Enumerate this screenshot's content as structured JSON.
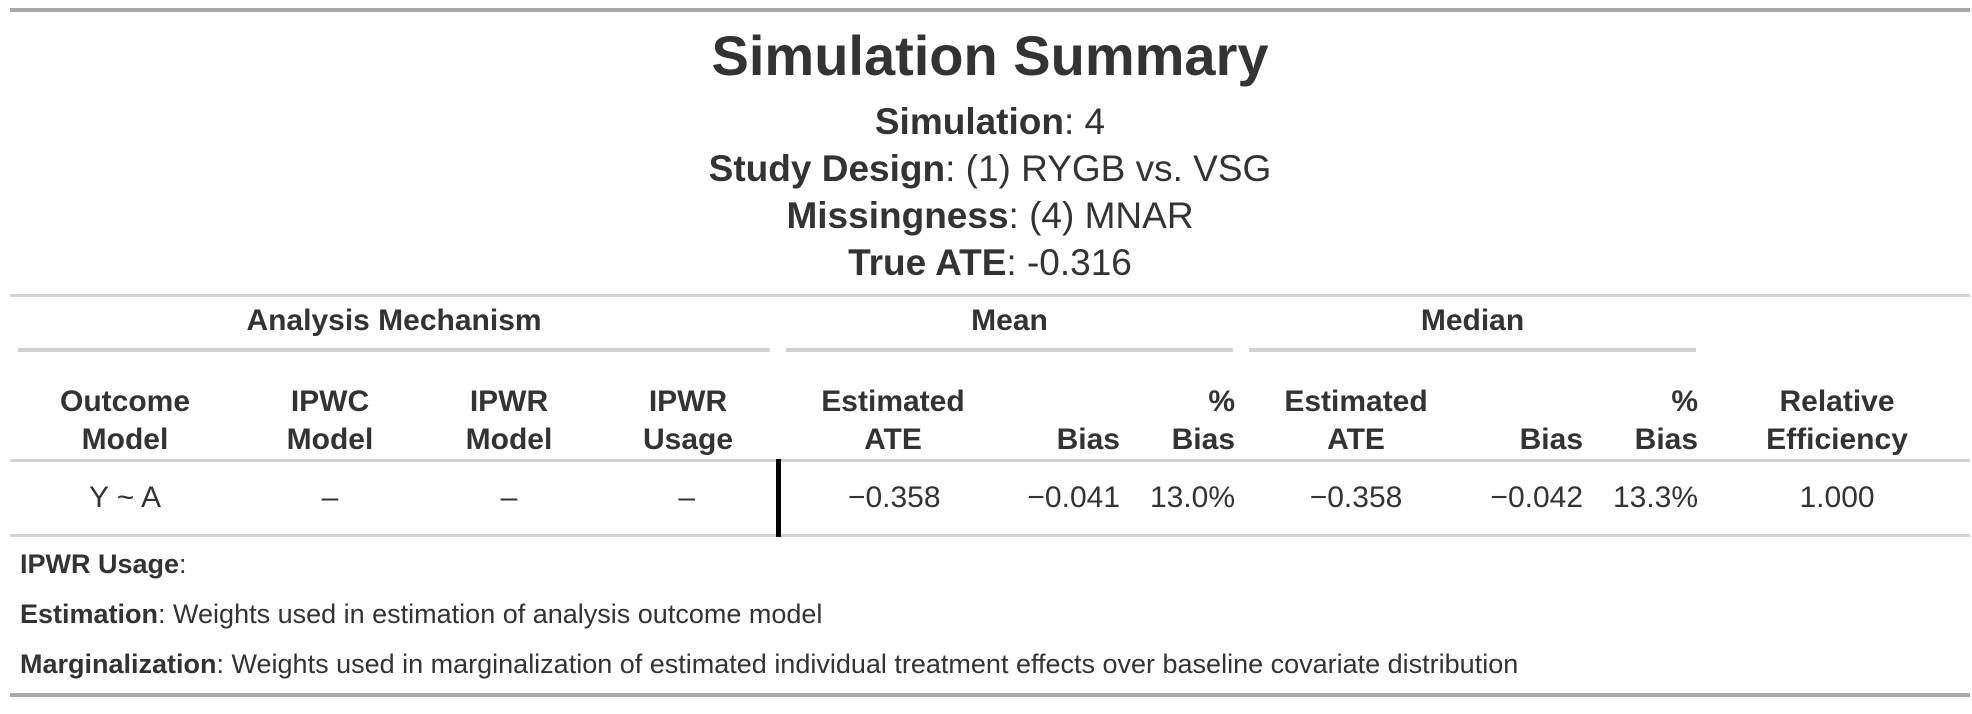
{
  "title": "Simulation Summary",
  "subtitle": [
    {
      "label": "Simulation",
      "sep": ": ",
      "value": "4"
    },
    {
      "label": "Study Design",
      "sep": ": ",
      "value": "(1) RYGB vs. VSG"
    },
    {
      "label": "Missingness",
      "sep": ": ",
      "value": "(4) MNAR"
    },
    {
      "label": "True ATE",
      "sep": ": ",
      "value": "-0.316"
    }
  ],
  "spanners": {
    "analysis": "Analysis Mechanism",
    "mean": "Mean",
    "median": "Median"
  },
  "columns": {
    "outcome_model": [
      "Outcome",
      "Model"
    ],
    "ipwc_model": [
      "IPWC",
      "Model"
    ],
    "ipwr_model": [
      "IPWR",
      "Model"
    ],
    "ipwr_usage": [
      "IPWR",
      "Usage"
    ],
    "mean_est": [
      "Estimated",
      "ATE"
    ],
    "mean_bias": [
      "Bias"
    ],
    "mean_pbias": [
      "%",
      "Bias"
    ],
    "median_est": [
      "Estimated",
      "ATE"
    ],
    "median_bias": [
      "Bias"
    ],
    "median_pbias": [
      "%",
      "Bias"
    ],
    "rel_eff": [
      "Relative",
      "Efficiency"
    ]
  },
  "rows": [
    {
      "outcome_model": "Y ~ A",
      "ipwc_model": "–",
      "ipwr_model": "–",
      "ipwr_usage": "–",
      "mean_est": "−0.358",
      "mean_bias": "−0.041",
      "mean_pbias": "13.0%",
      "median_est": "−0.358",
      "median_bias": "−0.042",
      "median_pbias": "13.3%",
      "rel_eff": "1.000"
    }
  ],
  "footnotes": [
    {
      "label": "IPWR Usage",
      "sep": ":",
      "text": ""
    },
    {
      "label": "Estimation",
      "sep": ": ",
      "text": "Weights used in estimation of analysis outcome model"
    },
    {
      "label": "Marginalization",
      "sep": ": ",
      "text": "Weights used in marginalization of estimated individual treatment effects over baseline covariate distribution"
    }
  ],
  "colors": {
    "text": "#333333",
    "rule": "#d3d3d3",
    "outer_rule": "#a8a8a8",
    "separator": "#000000"
  }
}
